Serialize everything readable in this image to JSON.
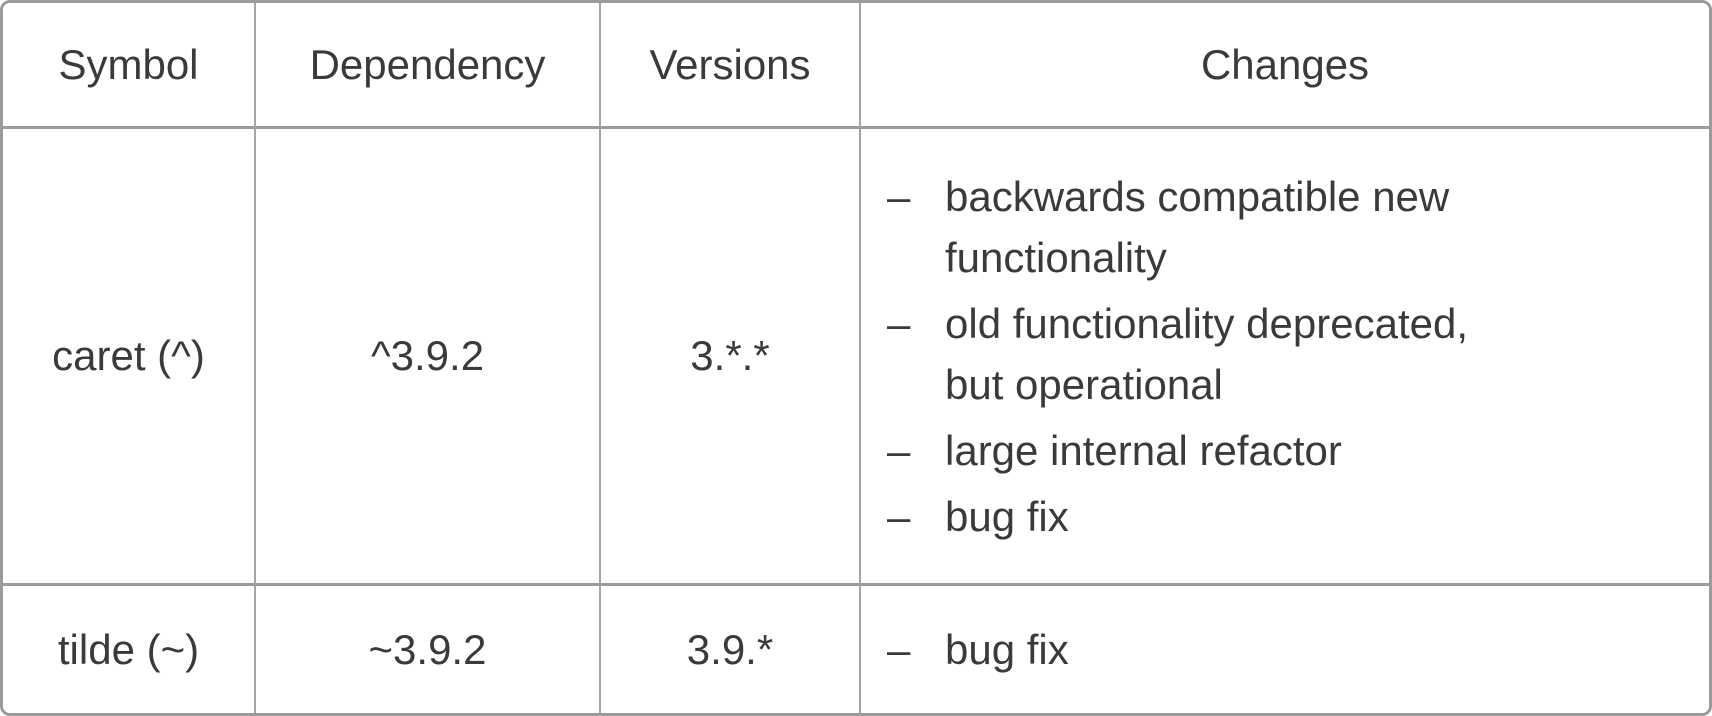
{
  "colors": {
    "background": "#ffffff",
    "outer_border": "#9a9a9a",
    "inner_border": "#a5a5a5",
    "text": "#3a3a3a"
  },
  "table": {
    "bullet_marker": "–",
    "headers": [
      "Symbol",
      "Dependency",
      "Versions",
      "Changes"
    ],
    "rows": [
      {
        "symbol": "caret (^)",
        "dependency": "^3.9.2",
        "versions": "3.*.*",
        "changes": [
          "backwards compatible new functionality",
          "old functionality deprecated, but operational",
          "large internal refactor",
          "bug fix"
        ]
      },
      {
        "symbol": "tilde (~)",
        "dependency": "~3.9.2",
        "versions": "3.9.*",
        "changes": [
          "bug fix"
        ]
      }
    ]
  }
}
